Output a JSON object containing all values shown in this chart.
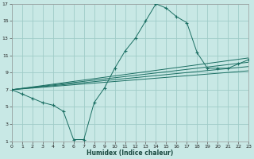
{
  "xlabel": "Humidex (Indice chaleur)",
  "xlim": [
    0,
    23
  ],
  "ylim": [
    1,
    17
  ],
  "xtick_vals": [
    0,
    1,
    2,
    3,
    4,
    5,
    6,
    7,
    8,
    9,
    10,
    11,
    12,
    13,
    14,
    15,
    16,
    17,
    18,
    19,
    20,
    21,
    22,
    23
  ],
  "ytick_vals": [
    1,
    3,
    5,
    7,
    9,
    11,
    13,
    15,
    17
  ],
  "background_color": "#c8e8e5",
  "grid_color": "#a0ccc8",
  "line_color": "#1a6e62",
  "main_curve_x": [
    0,
    1,
    2,
    3,
    4,
    5,
    6,
    7,
    8,
    9,
    10,
    11,
    12,
    13,
    14,
    15,
    16,
    17,
    18,
    19,
    20,
    21,
    22,
    23
  ],
  "main_curve_y": [
    7.0,
    6.5,
    6.0,
    5.5,
    5.2,
    4.5,
    1.2,
    1.2,
    5.5,
    7.2,
    9.5,
    11.5,
    13.0,
    15.0,
    17.0,
    16.5,
    15.5,
    14.8,
    11.3,
    9.5,
    9.5,
    9.5,
    10.0,
    10.5
  ],
  "straight_lines": [
    {
      "x": [
        0,
        23
      ],
      "y": [
        7.0,
        10.7
      ]
    },
    {
      "x": [
        0,
        23
      ],
      "y": [
        7.0,
        10.2
      ]
    },
    {
      "x": [
        0,
        23
      ],
      "y": [
        7.0,
        9.7
      ]
    },
    {
      "x": [
        0,
        23
      ],
      "y": [
        7.0,
        9.2
      ]
    }
  ]
}
